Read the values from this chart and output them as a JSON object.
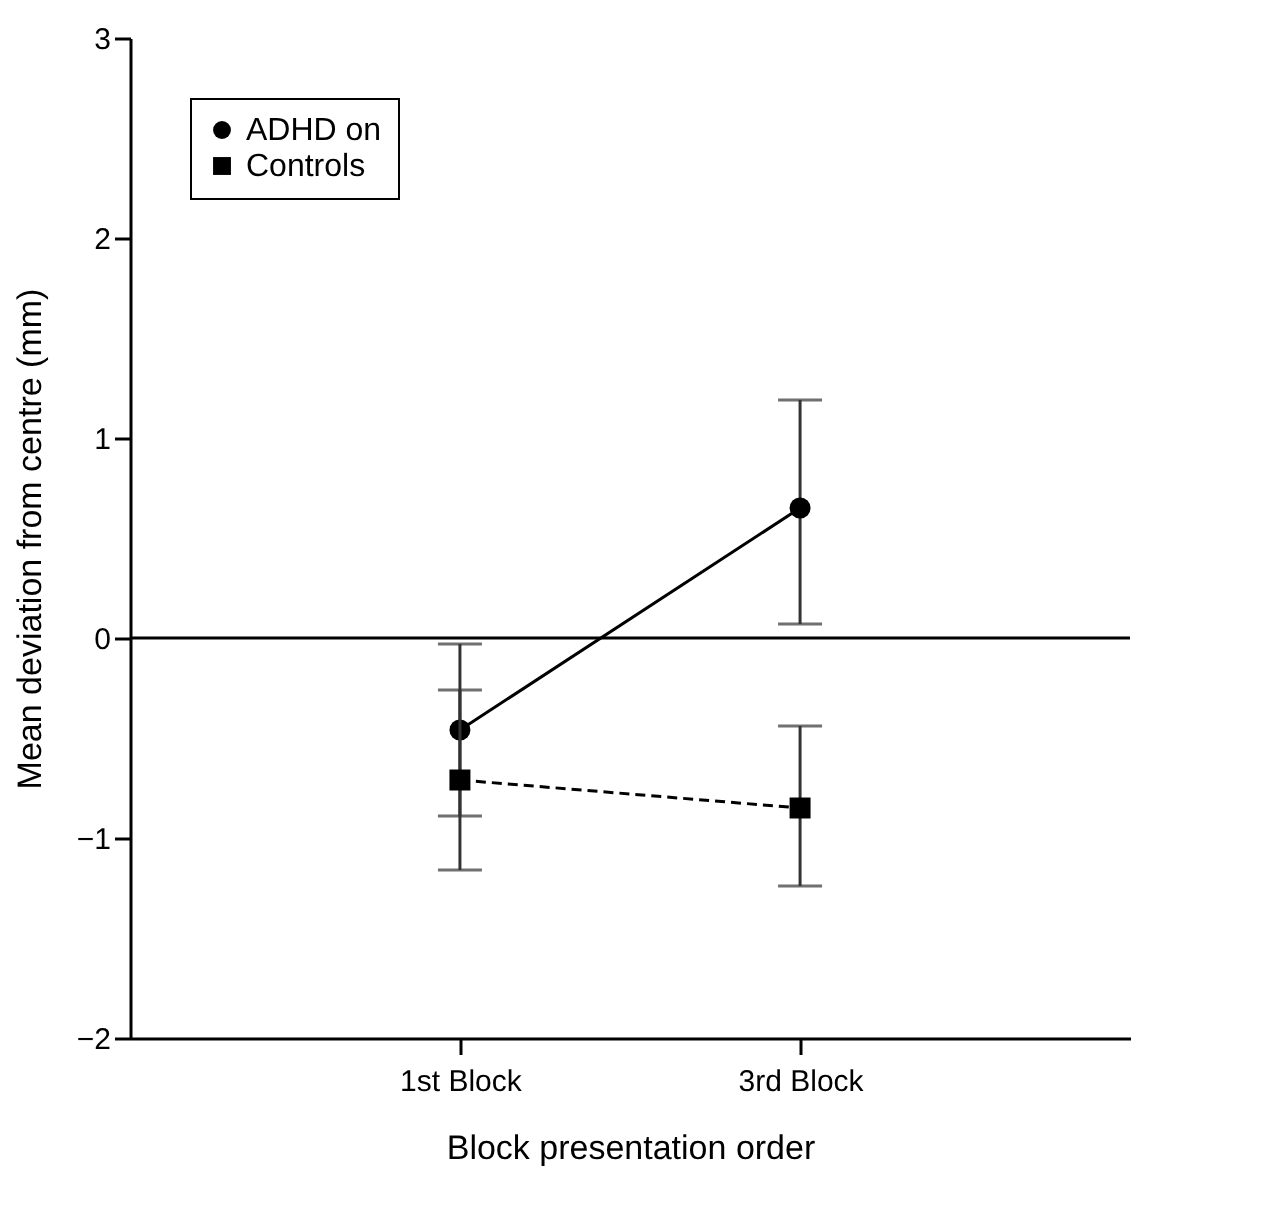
{
  "chart_data": {
    "type": "line",
    "xlabel": "Block presentation order",
    "ylabel": "Mean deviation from centre (mm)",
    "categories": [
      "1st Block",
      "3rd Block"
    ],
    "series": [
      {
        "name": "ADHD on",
        "color": "#000000",
        "marker": "circle",
        "line_style": "solid",
        "values": [
          -0.46,
          0.65
        ],
        "errors": [
          0.43,
          [
            0.07,
            1.19
          ]
        ]
      },
      {
        "name": "Controls",
        "color": "#000000",
        "marker": "square",
        "line_style": "dashed",
        "values": [
          -0.71,
          -0.85
        ],
        "errors": [
          0.45,
          [
            -1.24,
            -0.44
          ]
        ]
      }
    ],
    "ylim": [
      -2,
      3
    ],
    "yticks": [
      -2,
      -1,
      0,
      1,
      2,
      3
    ],
    "ref_lines": [
      {
        "axis": "y",
        "value": 0,
        "color": "#000000",
        "line_style": "solid"
      }
    ],
    "grid": false,
    "legend": "top left"
  }
}
